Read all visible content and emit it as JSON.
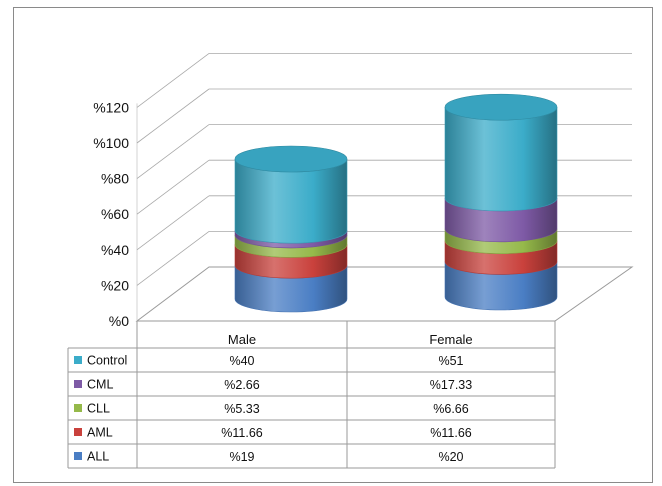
{
  "chart_data": {
    "type": "bar",
    "stacked": true,
    "style": "3d-cylinder",
    "categories": [
      "Male",
      "Female"
    ],
    "category_labels": [
      "Male",
      "Female"
    ],
    "ylim": [
      0,
      120
    ],
    "yticks": [
      0,
      20,
      40,
      60,
      80,
      100,
      120
    ],
    "ytick_labels": [
      "%0",
      "%20",
      "%40",
      "%60",
      "%80",
      "%100",
      "%120"
    ],
    "grid": true,
    "legend": "table-left",
    "series": [
      {
        "name": "ALL",
        "color": "#4a7ec4",
        "values": [
          19,
          20
        ],
        "labels": [
          "%19",
          "%20"
        ]
      },
      {
        "name": "AML",
        "color": "#c9413c",
        "values": [
          11.66,
          11.66
        ],
        "labels": [
          "%11.66",
          "%11.66"
        ]
      },
      {
        "name": "CLL",
        "color": "#95b94a",
        "values": [
          5.33,
          6.66
        ],
        "labels": [
          "%5.33",
          "%6.66"
        ]
      },
      {
        "name": "CML",
        "color": "#7e5aa6",
        "values": [
          2.66,
          17.33
        ],
        "labels": [
          "%2.66",
          "%17.33"
        ]
      },
      {
        "name": "Control",
        "color": "#3bacc9",
        "values": [
          40,
          51
        ],
        "labels": [
          "%40",
          "%51"
        ]
      }
    ]
  }
}
